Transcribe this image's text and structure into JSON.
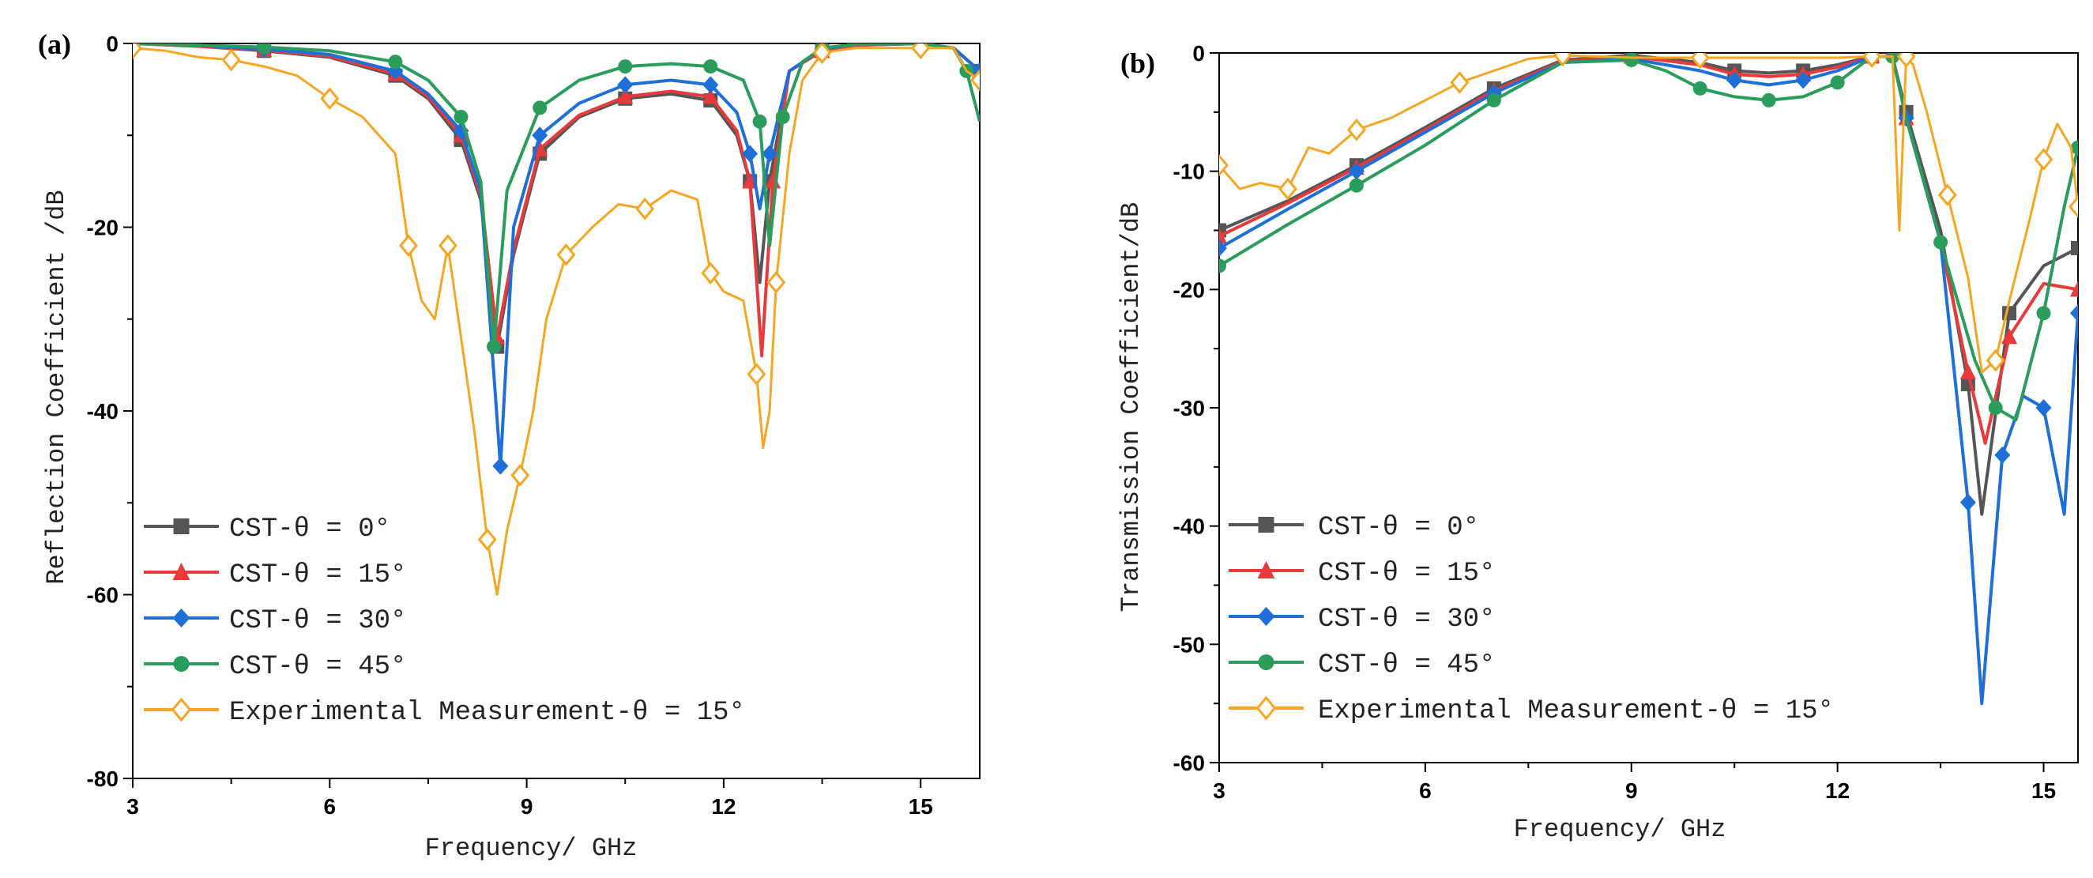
{
  "chart_data": [
    {
      "type": "line",
      "panel_label": "(a)",
      "xlabel": "Frequency/ GHz",
      "ylabel": "Reflection Coefficient /dB",
      "xlim": [
        3,
        15.9
      ],
      "ylim": [
        -80,
        0
      ],
      "xticks": [
        3,
        6,
        9,
        12,
        15
      ],
      "yticks": [
        0,
        -20,
        -40,
        -60,
        -80
      ],
      "legend_position": "bottom-left",
      "series": [
        {
          "name": "CST-θ = 0°",
          "color": "#555555",
          "marker": "square",
          "x": [
            3,
            4,
            5,
            6,
            7,
            7.5,
            8,
            8.3,
            8.55,
            8.8,
            9.2,
            9.8,
            10.5,
            11.2,
            11.8,
            12.2,
            12.4,
            12.55,
            12.7,
            13,
            13.5,
            14,
            15,
            15.5,
            15.9
          ],
          "y": [
            0,
            -0.3,
            -0.8,
            -1.5,
            -3.5,
            -6,
            -10.5,
            -17,
            -33,
            -23,
            -12,
            -8,
            -6,
            -5.5,
            -6.2,
            -10,
            -15,
            -26,
            -15,
            -3,
            -0.8,
            -0.2,
            0,
            -0.5,
            -3
          ]
        },
        {
          "name": "CST-θ = 15°",
          "color": "#e83a3a",
          "marker": "triangle",
          "x": [
            3,
            4,
            5,
            6,
            7,
            7.5,
            8,
            8.3,
            8.55,
            8.8,
            9.2,
            9.8,
            10.5,
            11.2,
            11.8,
            12.2,
            12.4,
            12.58,
            12.75,
            13,
            13.5,
            14,
            15,
            15.5,
            15.9
          ],
          "y": [
            0,
            -0.3,
            -0.7,
            -1.4,
            -3.3,
            -5.8,
            -10,
            -16.5,
            -32,
            -22.5,
            -11.5,
            -7.8,
            -5.8,
            -5.2,
            -5.8,
            -9.5,
            -15,
            -34,
            -15,
            -3,
            -0.8,
            -0.2,
            0,
            -0.5,
            -3
          ]
        },
        {
          "name": "CST-θ = 30°",
          "color": "#1f6fd9",
          "marker": "diamond",
          "x": [
            3,
            4,
            5,
            6,
            7,
            7.5,
            8,
            8.3,
            8.6,
            8.8,
            9.2,
            9.8,
            10.5,
            11.2,
            11.8,
            12.2,
            12.4,
            12.55,
            12.7,
            13,
            13.5,
            14,
            15,
            15.5,
            15.9
          ],
          "y": [
            0,
            -0.2,
            -0.6,
            -1.2,
            -3,
            -5.5,
            -9.5,
            -16,
            -46,
            -20,
            -10,
            -6.5,
            -4.5,
            -4,
            -4.5,
            -7.5,
            -12,
            -18,
            -12,
            -3,
            -0.6,
            -0.1,
            0,
            -0.5,
            -3
          ]
        },
        {
          "name": "CST-θ = 45°",
          "color": "#2a9d5c",
          "marker": "circle",
          "x": [
            3,
            4,
            5,
            6,
            7,
            7.5,
            8,
            8.3,
            8.5,
            8.7,
            9.2,
            9.8,
            10.5,
            11.2,
            11.8,
            12.3,
            12.55,
            12.7,
            12.9,
            13.2,
            13.5,
            14,
            15,
            15.5,
            15.7,
            15.9
          ],
          "y": [
            0,
            -0.2,
            -0.4,
            -0.8,
            -2,
            -4,
            -8,
            -15,
            -33,
            -16,
            -7,
            -4,
            -2.5,
            -2.2,
            -2.5,
            -4,
            -8.5,
            -22,
            -8,
            -2,
            -0.5,
            -0.1,
            0,
            -0.5,
            -3,
            -8.5
          ]
        },
        {
          "name": "Experimental Measurement-θ = 15°",
          "color": "#f5a623",
          "marker": "open-diamond",
          "x": [
            3,
            3.5,
            4,
            4.5,
            5,
            5.5,
            6,
            6.5,
            7,
            7.2,
            7.4,
            7.6,
            7.8,
            8,
            8.2,
            8.4,
            8.55,
            8.7,
            8.9,
            9.1,
            9.3,
            9.6,
            10,
            10.4,
            10.8,
            11.2,
            11.6,
            11.8,
            12,
            12.3,
            12.5,
            12.6,
            12.7,
            12.8,
            13,
            13.2,
            13.5,
            14,
            14.5,
            15,
            15.5,
            15.7,
            15.9
          ],
          "y": [
            -0.5,
            -0.8,
            -1.5,
            -1.8,
            -2.5,
            -3.5,
            -6,
            -8,
            -12,
            -22,
            -28,
            -30,
            -22,
            -32,
            -42,
            -54,
            -60,
            -53,
            -47,
            -40,
            -30,
            -23,
            -20,
            -17.5,
            -18,
            -16,
            -17,
            -25,
            -27,
            -28,
            -36,
            -44,
            -40,
            -26,
            -12,
            -4,
            -1,
            -0.5,
            -0.5,
            -0.5,
            -0.5,
            -3,
            -4
          ]
        }
      ]
    },
    {
      "type": "line",
      "panel_label": "(b)",
      "xlabel": "Frequency/ GHz",
      "ylabel": "Transmission Coefficient/dB",
      "xlim": [
        3,
        15.5
      ],
      "ylim": [
        -60,
        0
      ],
      "xticks": [
        3,
        6,
        9,
        12,
        15
      ],
      "yticks": [
        0,
        -10,
        -20,
        -30,
        -40,
        -50,
        -60
      ],
      "legend_position": "bottom-left",
      "series": [
        {
          "name": "CST-θ = 0°",
          "color": "#555555",
          "marker": "square",
          "x": [
            3,
            4,
            5,
            6,
            7,
            8,
            9,
            10,
            10.5,
            11,
            11.5,
            12,
            12.5,
            12.8,
            13,
            13.5,
            13.9,
            14.1,
            14.5,
            15,
            15.5
          ],
          "y": [
            -15,
            -12.5,
            -9.5,
            -6.3,
            -3,
            -0.6,
            -0.2,
            -0.8,
            -1.5,
            -1.7,
            -1.5,
            -1,
            -0.3,
            -0.3,
            -5,
            -15,
            -28,
            -39,
            -22,
            -18,
            -16.5
          ]
        },
        {
          "name": "CST-θ = 15°",
          "color": "#e83a3a",
          "marker": "triangle",
          "x": [
            3,
            4,
            5,
            6,
            7,
            8,
            9,
            10,
            10.5,
            11,
            11.5,
            12,
            12.5,
            12.8,
            13,
            13.5,
            13.9,
            14.15,
            14.5,
            15,
            15.5
          ],
          "y": [
            -15.5,
            -12.7,
            -9.7,
            -6.5,
            -3.2,
            -0.7,
            -0.3,
            -1,
            -1.8,
            -2,
            -1.8,
            -1.2,
            -0.3,
            -0.3,
            -5.5,
            -16,
            -27,
            -33,
            -24,
            -19.5,
            -20
          ]
        },
        {
          "name": "CST-θ = 30°",
          "color": "#1f6fd9",
          "marker": "diamond",
          "x": [
            3,
            4,
            5,
            6,
            7,
            8,
            9,
            10,
            10.5,
            11,
            11.5,
            12,
            12.5,
            12.8,
            13,
            13.5,
            13.9,
            14.1,
            14.4,
            14.7,
            15,
            15.3,
            15.5
          ],
          "y": [
            -16.5,
            -13.2,
            -10,
            -6.7,
            -3.4,
            -0.8,
            -0.5,
            -1.5,
            -2.3,
            -2.7,
            -2.3,
            -1.5,
            -0.3,
            -0.3,
            -5.5,
            -16,
            -38,
            -55,
            -34,
            -29,
            -30,
            -39,
            -22
          ]
        },
        {
          "name": "CST-θ = 45°",
          "color": "#2a9d5c",
          "marker": "circle",
          "x": [
            3,
            4,
            5,
            6,
            7,
            8,
            9,
            9.5,
            10,
            10.5,
            11,
            11.5,
            12,
            12.5,
            12.8,
            13,
            13.5,
            14,
            14.3,
            14.6,
            15,
            15.3,
            15.5
          ],
          "y": [
            -18,
            -14.5,
            -11.2,
            -7.8,
            -4,
            -0.8,
            -0.6,
            -1.5,
            -3,
            -3.7,
            -4,
            -3.7,
            -2.5,
            -0.3,
            -0.3,
            -5.5,
            -16,
            -26,
            -30,
            -31,
            -22,
            -13,
            -8
          ]
        },
        {
          "name": "Experimental Measurement-θ = 15°",
          "color": "#f5a623",
          "marker": "open-diamond",
          "x": [
            3,
            3.3,
            3.6,
            4,
            4.3,
            4.6,
            5,
            5.5,
            6,
            6.5,
            7,
            7.5,
            8,
            8.5,
            9,
            10,
            11,
            12,
            12.5,
            12.8,
            12.9,
            13.0,
            13.1,
            13.3,
            13.6,
            13.9,
            14.1,
            14.3,
            14.5,
            14.8,
            15,
            15.2,
            15.4,
            15.5
          ],
          "y": [
            -9.5,
            -11.5,
            -11,
            -11.5,
            -8,
            -8.5,
            -6.5,
            -5.5,
            -4,
            -2.5,
            -1.5,
            -0.5,
            -0.2,
            -0.3,
            -0.4,
            -0.4,
            -0.4,
            -0.4,
            -0.3,
            -0.3,
            -15,
            -0.3,
            -1,
            -5,
            -12,
            -19,
            -27,
            -26,
            -21,
            -14,
            -9,
            -6,
            -8,
            -13
          ]
        }
      ]
    }
  ]
}
